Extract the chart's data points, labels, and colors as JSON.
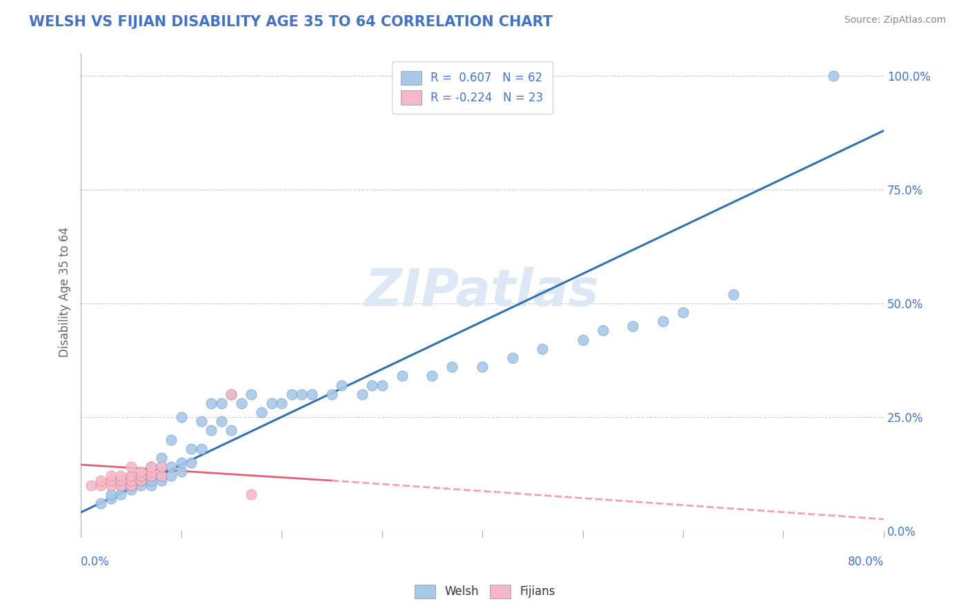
{
  "title": "WELSH VS FIJIAN DISABILITY AGE 35 TO 64 CORRELATION CHART",
  "source": "Source: ZipAtlas.com",
  "ylabel": "Disability Age 35 to 64",
  "ytick_labels": [
    "0.0%",
    "25.0%",
    "50.0%",
    "75.0%",
    "100.0%"
  ],
  "ytick_values": [
    0.0,
    0.25,
    0.5,
    0.75,
    1.0
  ],
  "xlim": [
    0.0,
    0.8
  ],
  "ylim": [
    0.0,
    1.05
  ],
  "welsh_R": 0.607,
  "welsh_N": 62,
  "fijian_R": -0.224,
  "fijian_N": 23,
  "welsh_color": "#a8c8e8",
  "fijian_color": "#f4b8c8",
  "welsh_line_color": "#3070b0",
  "fijian_line_color": "#e06070",
  "fijian_line_dashed_color": "#f0a0b0",
  "background_color": "#ffffff",
  "watermark_text": "ZIPatlas",
  "watermark_color": "#dce8f5",
  "title_color": "#4472c4",
  "axis_label_color": "#4472c4",
  "ylabel_color": "#666666",
  "source_color": "#888888",
  "grid_color": "#cccccc",
  "welsh_scatter": {
    "x": [
      0.02,
      0.03,
      0.03,
      0.04,
      0.04,
      0.05,
      0.05,
      0.05,
      0.05,
      0.06,
      0.06,
      0.06,
      0.07,
      0.07,
      0.07,
      0.07,
      0.08,
      0.08,
      0.08,
      0.08,
      0.09,
      0.09,
      0.09,
      0.1,
      0.1,
      0.1,
      0.11,
      0.11,
      0.12,
      0.12,
      0.13,
      0.13,
      0.14,
      0.14,
      0.15,
      0.15,
      0.16,
      0.17,
      0.18,
      0.19,
      0.2,
      0.21,
      0.22,
      0.23,
      0.25,
      0.26,
      0.28,
      0.29,
      0.3,
      0.32,
      0.35,
      0.37,
      0.4,
      0.43,
      0.46,
      0.5,
      0.52,
      0.55,
      0.58,
      0.6,
      0.65,
      0.75
    ],
    "y": [
      0.06,
      0.07,
      0.08,
      0.08,
      0.1,
      0.09,
      0.1,
      0.11,
      0.12,
      0.1,
      0.11,
      0.12,
      0.1,
      0.11,
      0.12,
      0.14,
      0.11,
      0.12,
      0.14,
      0.16,
      0.12,
      0.14,
      0.2,
      0.13,
      0.15,
      0.25,
      0.15,
      0.18,
      0.18,
      0.24,
      0.22,
      0.28,
      0.24,
      0.28,
      0.22,
      0.3,
      0.28,
      0.3,
      0.26,
      0.28,
      0.28,
      0.3,
      0.3,
      0.3,
      0.3,
      0.32,
      0.3,
      0.32,
      0.32,
      0.34,
      0.34,
      0.36,
      0.36,
      0.38,
      0.4,
      0.42,
      0.44,
      0.45,
      0.46,
      0.48,
      0.52,
      1.0
    ]
  },
  "fijian_scatter": {
    "x": [
      0.01,
      0.02,
      0.02,
      0.03,
      0.03,
      0.03,
      0.04,
      0.04,
      0.04,
      0.05,
      0.05,
      0.05,
      0.05,
      0.06,
      0.06,
      0.06,
      0.07,
      0.07,
      0.07,
      0.08,
      0.08,
      0.15,
      0.17
    ],
    "y": [
      0.1,
      0.1,
      0.11,
      0.1,
      0.11,
      0.12,
      0.1,
      0.11,
      0.12,
      0.1,
      0.11,
      0.12,
      0.14,
      0.11,
      0.12,
      0.13,
      0.12,
      0.13,
      0.14,
      0.12,
      0.14,
      0.3,
      0.08
    ]
  },
  "welsh_line": {
    "x0": 0.0,
    "y0": 0.04,
    "x1": 0.8,
    "y1": 0.88
  },
  "fijian_line_solid": {
    "x0": 0.0,
    "y0": 0.145,
    "x1": 0.25,
    "y1": 0.11
  },
  "fijian_line_dashed": {
    "x0": 0.25,
    "y0": 0.11,
    "x1": 0.8,
    "y1": 0.025
  }
}
